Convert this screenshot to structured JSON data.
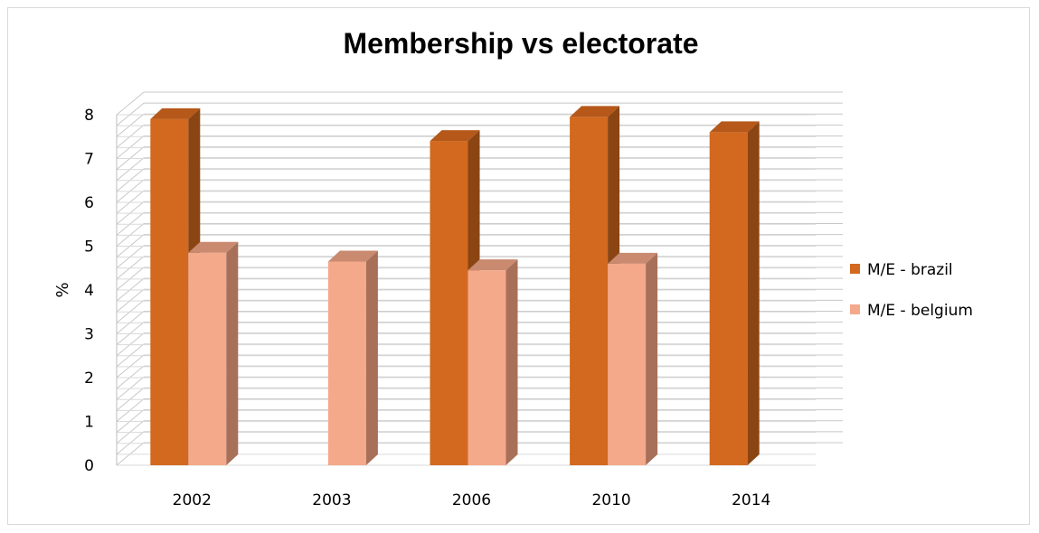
{
  "chart_data": {
    "type": "bar",
    "title": "Membership vs electorate",
    "xlabel": "",
    "ylabel": "%",
    "categories": [
      "2002",
      "2003",
      "2006",
      "2010",
      "2014"
    ],
    "series": [
      {
        "name": "M/E - brazil",
        "values": [
          7.9,
          null,
          7.4,
          7.95,
          7.6
        ],
        "color": "#D2691E",
        "side_color": "#8B4513",
        "top_color": "#B5581A"
      },
      {
        "name": "M/E - belgium",
        "values": [
          4.85,
          4.65,
          4.45,
          4.6,
          null
        ],
        "color": "#F4A98A",
        "side_color": "#A87059",
        "top_color": "#C98A70"
      }
    ],
    "ylim": [
      0,
      8
    ],
    "yticks": [
      0,
      1,
      2,
      3,
      4,
      5,
      6,
      7,
      8
    ],
    "grid": true,
    "legend_position": "right",
    "style": "3d-column"
  }
}
